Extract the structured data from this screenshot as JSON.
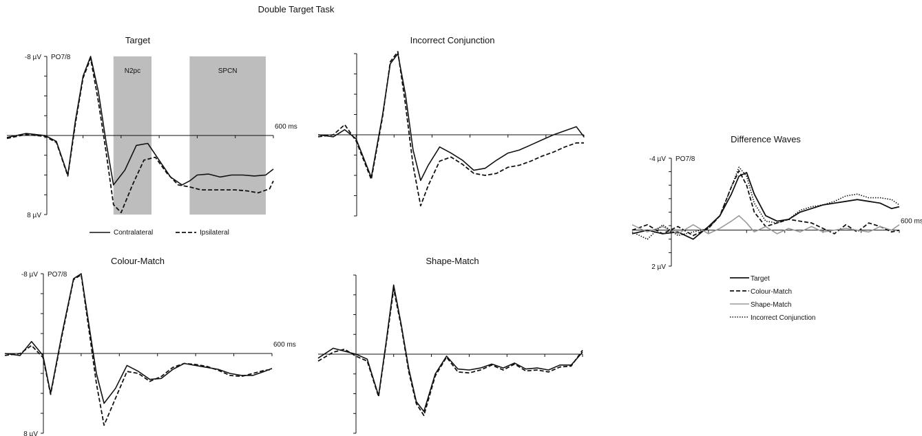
{
  "figure_title": "Double Target Task",
  "chart_data": [
    {
      "id": "target",
      "type": "line",
      "title": "Target",
      "channel": "PO7/8",
      "y_top_label": "-8 µV",
      "y_bottom_label": "8 µV",
      "x_end_label": "600 ms",
      "ylim": [
        -8,
        8
      ],
      "xlim": [
        -100,
        600
      ],
      "inverted_y": true,
      "annotations": [
        {
          "label": "N2pc",
          "x": [
            180,
            280
          ]
        },
        {
          "label": "SPCN",
          "x": [
            380,
            580
          ]
        }
      ],
      "legend": [
        {
          "name": "Contralateral",
          "style": "solid"
        },
        {
          "name": "Ipsilateral",
          "style": "dashed"
        }
      ],
      "series": [
        {
          "style": "solid",
          "x": [
            -100,
            -50,
            0,
            30,
            60,
            80,
            100,
            120,
            140,
            160,
            180,
            210,
            240,
            270,
            300,
            330,
            360,
            380,
            400,
            430,
            460,
            490,
            520,
            550,
            580,
            600
          ],
          "y": [
            0.2,
            -0.2,
            0,
            0.6,
            4.0,
            -1.5,
            -6.0,
            -8.0,
            -4.5,
            0.5,
            5.0,
            3.5,
            1.0,
            0.8,
            2.5,
            4.2,
            5.0,
            4.6,
            4.0,
            3.9,
            4.2,
            4.0,
            4.0,
            4.1,
            4.0,
            3.4
          ]
        },
        {
          "style": "dashed",
          "x": [
            -100,
            -50,
            0,
            30,
            60,
            80,
            100,
            120,
            140,
            160,
            180,
            200,
            230,
            260,
            290,
            320,
            350,
            380,
            410,
            440,
            470,
            500,
            530,
            560,
            590,
            600
          ],
          "y": [
            0.3,
            -0.1,
            0.1,
            0.7,
            4.1,
            -1.2,
            -5.8,
            -7.8,
            -3.5,
            1.5,
            7.0,
            7.8,
            5.0,
            2.5,
            2.2,
            3.8,
            5.0,
            5.2,
            5.5,
            5.5,
            5.5,
            5.5,
            5.6,
            5.8,
            5.4,
            4.6
          ]
        }
      ]
    },
    {
      "id": "incorrect-conjunction",
      "type": "line",
      "title": "Incorrect Conjunction",
      "ylim": [
        -8,
        8
      ],
      "xlim": [
        -100,
        600
      ],
      "inverted_y": true,
      "series": [
        {
          "style": "solid",
          "x": [
            -100,
            -60,
            -30,
            0,
            40,
            70,
            90,
            110,
            130,
            150,
            170,
            190,
            220,
            250,
            280,
            310,
            340,
            370,
            400,
            430,
            460,
            490,
            520,
            550,
            580,
            600
          ],
          "y": [
            0.0,
            0.2,
            -0.5,
            0.4,
            4.2,
            -2.0,
            -7.0,
            -8.0,
            -4.0,
            1.5,
            4.5,
            3.0,
            1.2,
            1.8,
            2.5,
            3.5,
            3.3,
            2.5,
            1.8,
            1.5,
            1.0,
            0.5,
            0.0,
            -0.4,
            -0.8,
            0.2
          ]
        },
        {
          "style": "dashed",
          "x": [
            -100,
            -60,
            -30,
            0,
            40,
            70,
            90,
            110,
            130,
            150,
            170,
            190,
            220,
            250,
            280,
            310,
            340,
            370,
            400,
            430,
            460,
            490,
            520,
            550,
            580,
            600
          ],
          "y": [
            0.2,
            0.0,
            -1.0,
            0.6,
            4.4,
            -1.8,
            -7.2,
            -8.2,
            -3.0,
            3.0,
            7.0,
            5.0,
            2.6,
            2.2,
            2.9,
            3.8,
            4.0,
            3.8,
            3.2,
            3.0,
            2.6,
            2.1,
            1.7,
            1.2,
            0.8,
            0.8
          ]
        }
      ]
    },
    {
      "id": "colour-match",
      "type": "line",
      "title": "Colour-Match",
      "channel": "PO7/8",
      "y_top_label": "-8 µV",
      "y_bottom_label": "8 µV",
      "x_end_label": "600 ms",
      "ylim": [
        -8,
        8
      ],
      "xlim": [
        -100,
        600
      ],
      "inverted_y": true,
      "series": [
        {
          "style": "solid",
          "x": [
            -100,
            -60,
            -30,
            0,
            20,
            50,
            80,
            100,
            120,
            140,
            160,
            190,
            220,
            250,
            280,
            310,
            340,
            370,
            400,
            430,
            460,
            490,
            520,
            550,
            580,
            600
          ],
          "y": [
            0.0,
            0.2,
            -1.2,
            0.2,
            4.0,
            -2.0,
            -7.5,
            -8.0,
            -3.0,
            2.0,
            5.0,
            3.5,
            1.2,
            1.8,
            2.6,
            2.5,
            1.6,
            1.0,
            1.2,
            1.4,
            1.6,
            2.0,
            2.2,
            2.2,
            1.8,
            1.5
          ]
        },
        {
          "style": "dashed",
          "x": [
            -100,
            -60,
            -30,
            0,
            20,
            50,
            80,
            100,
            120,
            140,
            160,
            190,
            220,
            250,
            280,
            310,
            340,
            370,
            400,
            430,
            460,
            490,
            520,
            550,
            580,
            600
          ],
          "y": [
            0.2,
            0.0,
            -0.8,
            0.4,
            4.1,
            -1.8,
            -7.4,
            -7.9,
            -2.5,
            3.0,
            7.2,
            4.5,
            1.8,
            2.0,
            2.8,
            2.3,
            1.4,
            1.0,
            1.1,
            1.3,
            1.7,
            2.2,
            2.3,
            2.0,
            1.7,
            1.6
          ]
        }
      ]
    },
    {
      "id": "shape-match",
      "type": "line",
      "title": "Shape-Match",
      "ylim": [
        -8,
        8
      ],
      "xlim": [
        -100,
        600
      ],
      "inverted_y": true,
      "series": [
        {
          "style": "solid",
          "x": [
            -100,
            -60,
            -30,
            0,
            30,
            60,
            80,
            100,
            120,
            140,
            160,
            180,
            210,
            240,
            270,
            300,
            330,
            360,
            390,
            420,
            450,
            480,
            510,
            540,
            570,
            600
          ],
          "y": [
            0.4,
            -0.6,
            -0.3,
            0.0,
            0.5,
            4.2,
            -1.2,
            -7.0,
            -3.0,
            1.5,
            4.8,
            5.8,
            2.0,
            0.2,
            1.5,
            1.6,
            1.4,
            1.0,
            1.4,
            0.9,
            1.5,
            1.4,
            1.6,
            1.1,
            1.1,
            -0.2
          ]
        },
        {
          "style": "dashed",
          "x": [
            -100,
            -60,
            -30,
            0,
            30,
            60,
            80,
            100,
            120,
            140,
            160,
            180,
            210,
            240,
            270,
            300,
            330,
            360,
            390,
            420,
            450,
            480,
            510,
            540,
            570,
            600
          ],
          "y": [
            0.7,
            -0.2,
            -0.5,
            0.2,
            0.7,
            4.3,
            -1.0,
            -6.6,
            -2.8,
            1.8,
            5.0,
            6.2,
            2.2,
            0.3,
            1.8,
            1.9,
            1.6,
            1.1,
            1.6,
            1.0,
            1.7,
            1.6,
            1.8,
            1.3,
            1.2,
            -0.4
          ]
        }
      ]
    },
    {
      "id": "difference-waves",
      "type": "line",
      "title": "Difference Waves",
      "channel": "PO7/8",
      "y_top_label": "-4 µV",
      "y_bottom_label": "2 µV",
      "x_end_label": "600 ms",
      "ylim": [
        -4,
        2
      ],
      "xlim": [
        -100,
        600
      ],
      "inverted_y": true,
      "legend": [
        {
          "name": "Target",
          "style": "solid-black"
        },
        {
          "name": "Colour-Match",
          "style": "dashed"
        },
        {
          "name": "Shape-Match",
          "style": "solid-gray"
        },
        {
          "name": "Incorrect Conjunction",
          "style": "dotted"
        }
      ],
      "series": [
        {
          "style": "solid-black",
          "x": [
            -100,
            -60,
            -20,
            20,
            60,
            100,
            130,
            160,
            180,
            200,
            220,
            250,
            280,
            310,
            340,
            370,
            400,
            430,
            460,
            490,
            520,
            550,
            580,
            600
          ],
          "y": [
            0.2,
            0.0,
            0.2,
            0.1,
            0.5,
            -0.2,
            -0.8,
            -2.0,
            -3.0,
            -3.2,
            -2.0,
            -0.8,
            -0.5,
            -0.6,
            -1.0,
            -1.2,
            -1.4,
            -1.5,
            -1.6,
            -1.7,
            -1.6,
            -1.5,
            -1.2,
            -1.3
          ]
        },
        {
          "style": "dashed",
          "x": [
            -100,
            -60,
            -20,
            20,
            60,
            100,
            130,
            160,
            180,
            200,
            220,
            250,
            280,
            310,
            340,
            370,
            400,
            430,
            460,
            490,
            520,
            550,
            580,
            600
          ],
          "y": [
            0.0,
            -0.3,
            0.2,
            -0.2,
            0.3,
            -0.1,
            -0.8,
            -2.4,
            -3.3,
            -2.5,
            -1.0,
            -0.2,
            -0.4,
            -0.6,
            -0.5,
            -0.4,
            -0.1,
            0.2,
            -0.3,
            0.1,
            -0.4,
            -0.2,
            0.1,
            0.0
          ]
        },
        {
          "style": "solid-gray",
          "x": [
            -100,
            -60,
            -20,
            20,
            60,
            100,
            130,
            160,
            180,
            200,
            220,
            250,
            280,
            310,
            340,
            370,
            400,
            430,
            460,
            490,
            520,
            550,
            580,
            600
          ],
          "y": [
            -0.3,
            0.1,
            -0.2,
            0.2,
            -0.3,
            0.2,
            -0.1,
            -0.5,
            -0.8,
            -0.4,
            0.1,
            -0.2,
            0.2,
            -0.1,
            0.1,
            -0.2,
            0.1,
            0.0,
            -0.1,
            0.0,
            0.1,
            -0.2,
            0.0,
            -0.3
          ]
        },
        {
          "style": "dotted",
          "x": [
            -100,
            -60,
            -20,
            20,
            60,
            100,
            130,
            160,
            180,
            200,
            220,
            250,
            280,
            310,
            340,
            370,
            400,
            430,
            460,
            490,
            520,
            550,
            580,
            600
          ],
          "y": [
            0.1,
            0.5,
            -0.3,
            0.3,
            0.1,
            -0.1,
            -0.8,
            -2.4,
            -3.5,
            -3.0,
            -1.5,
            -0.5,
            -0.4,
            -0.6,
            -1.1,
            -1.3,
            -1.4,
            -1.6,
            -1.9,
            -2.0,
            -1.8,
            -1.8,
            -1.7,
            -1.4
          ]
        }
      ]
    }
  ]
}
